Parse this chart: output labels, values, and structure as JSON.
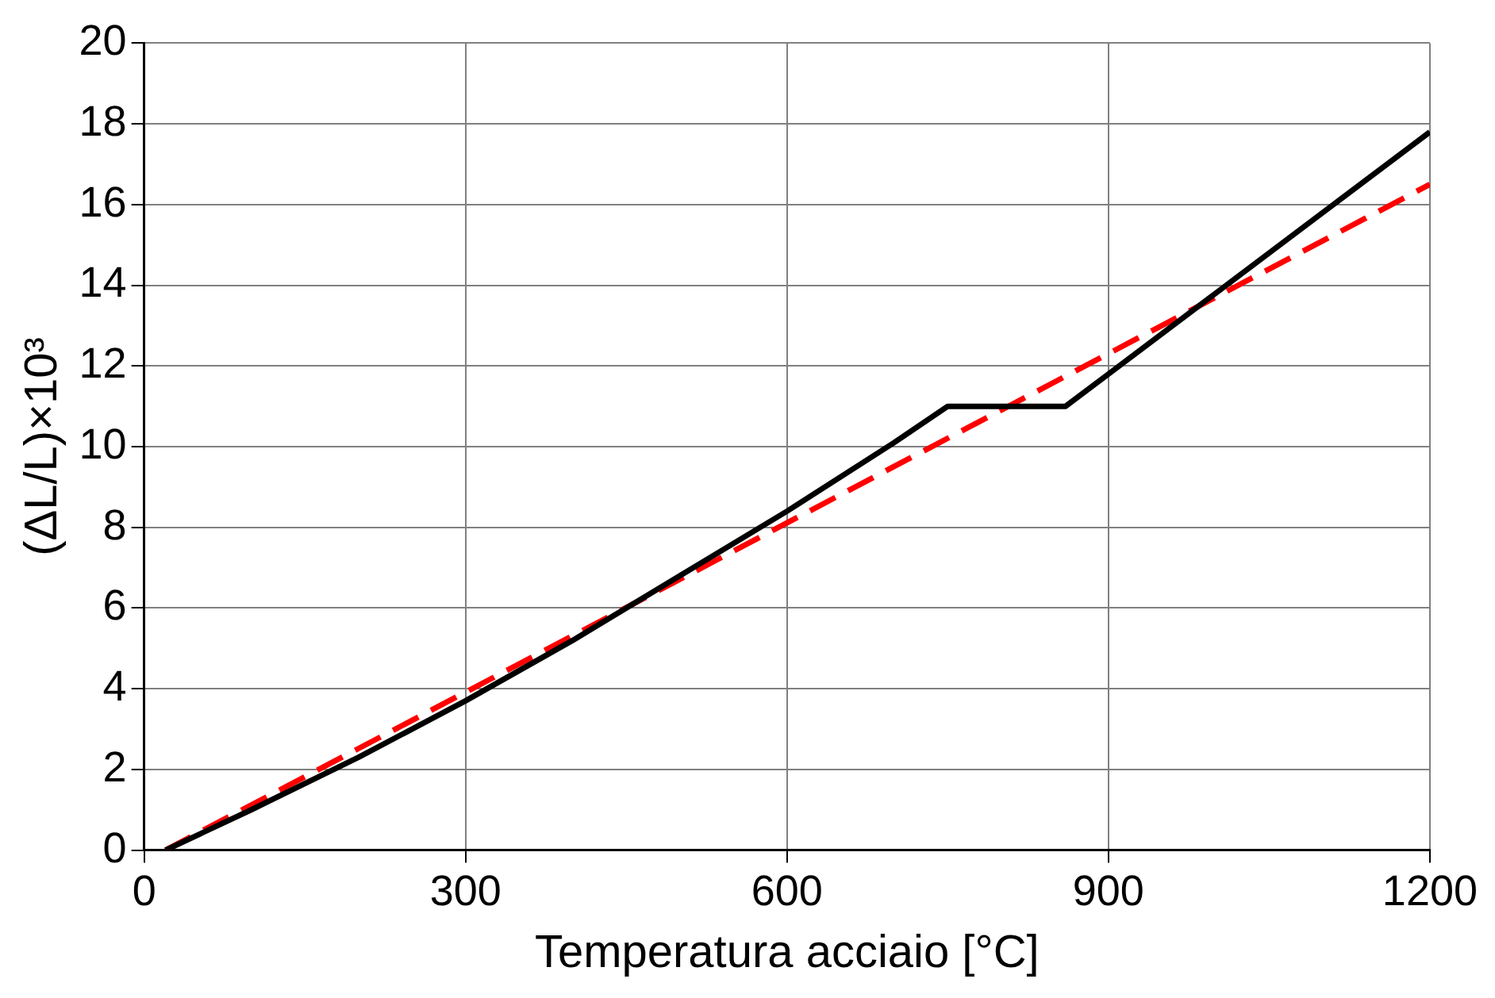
{
  "chart_data": {
    "type": "line",
    "xlabel": "Temperatura acciaio [°C]",
    "ylabel": "(ΔL/L)×10³",
    "xlim": [
      0,
      1200
    ],
    "xticks": [
      0,
      300,
      600,
      900,
      1200
    ],
    "ylim": [
      0,
      20
    ],
    "yticks": [
      0,
      2,
      4,
      6,
      8,
      10,
      12,
      14,
      16,
      18,
      20
    ],
    "grid": true,
    "legend": false,
    "marker": "none",
    "series": [
      {
        "color": "#000000",
        "line_style": "solid",
        "x": [
          20,
          100,
          200,
          300,
          400,
          500,
          600,
          700,
          750,
          860,
          900,
          1000,
          1100,
          1200
        ],
        "values": [
          0,
          1.0,
          2.3,
          3.7,
          5.2,
          6.8,
          8.4,
          10.1,
          11,
          11,
          11.8,
          13.8,
          15.8,
          17.8
        ]
      },
      {
        "color": "#ff0000",
        "line_style": "dashed",
        "x": [
          20,
          1200
        ],
        "values": [
          0,
          16.5
        ]
      }
    ]
  }
}
